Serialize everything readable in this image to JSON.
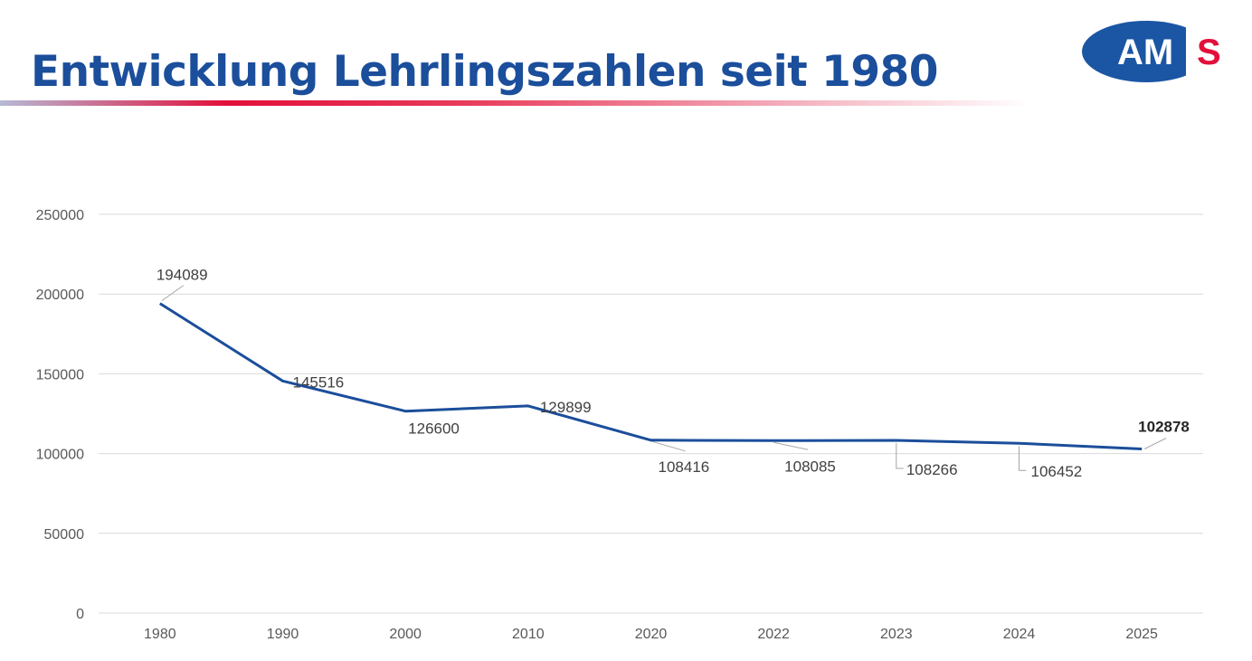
{
  "header": {
    "title": "Entwicklung Lehrlingszahlen seit 1980",
    "logo_text": "AMS"
  },
  "colors": {
    "title": "#1b4e9b",
    "line": "#1b4e9b",
    "logo_blue": "#1b56a4",
    "logo_red": "#e2103a",
    "grid": "#d9d9d9"
  },
  "chart_data": {
    "type": "line",
    "title": "",
    "xlabel": "",
    "ylabel": "",
    "categories": [
      "1980",
      "1990",
      "2000",
      "2010",
      "2020",
      "2022",
      "2023",
      "2024",
      "2025"
    ],
    "series": [
      {
        "values": [
          194089,
          145516,
          126600,
          129899,
          108416,
          108085,
          108266,
          106452,
          102878
        ]
      }
    ],
    "data_labels": [
      "194089",
      "145516",
      "126600",
      "129899",
      "108416",
      "108085",
      "108266",
      "106452",
      "102878"
    ],
    "highlighted_label_index": 8,
    "yticks": [
      "0",
      "50000",
      "100000",
      "150000",
      "200000",
      "250000"
    ],
    "ylim": [
      0,
      250000
    ],
    "grid": true,
    "legend": "none"
  }
}
